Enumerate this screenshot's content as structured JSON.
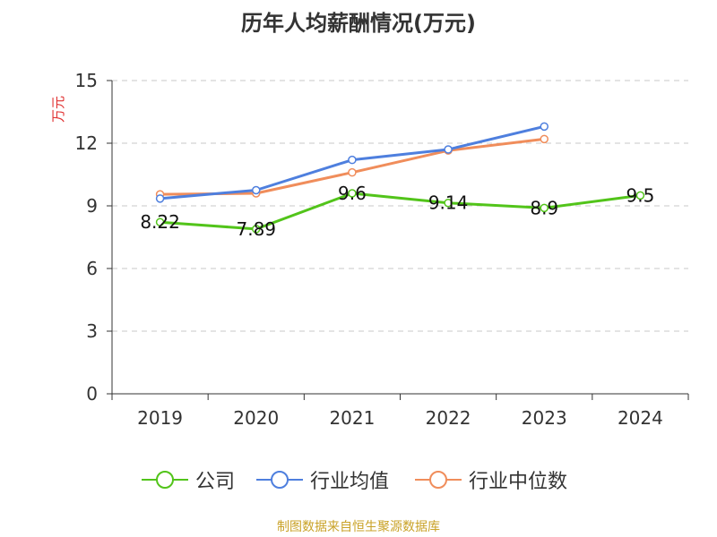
{
  "title": "历年人均薪酬情况(万元)",
  "source": "制图数据来自恒生聚源数据库",
  "chart_data": {
    "type": "line",
    "title": "历年人均薪酬情况(万元)",
    "xlabel": "",
    "ylabel": "万元",
    "ylim": [
      0,
      15
    ],
    "yticks": [
      0,
      3,
      6,
      9,
      12,
      15
    ],
    "grid": true,
    "legend_position": "bottom",
    "categories": [
      "2019",
      "2020",
      "2021",
      "2022",
      "2023",
      "2024"
    ],
    "series": [
      {
        "name": "公司",
        "color": "#52c41a",
        "values": [
          8.22,
          7.89,
          9.6,
          9.14,
          8.9,
          9.5
        ],
        "labels": [
          "8.22",
          "7.89",
          "9.6",
          "9.14",
          "8.9",
          "9.5"
        ]
      },
      {
        "name": "行业均值",
        "color": "#4e7fde",
        "values": [
          9.35,
          9.75,
          11.2,
          11.7,
          12.8,
          null
        ]
      },
      {
        "name": "行业中位数",
        "color": "#f08d5b",
        "values": [
          9.55,
          9.6,
          10.6,
          11.65,
          12.2,
          null
        ]
      }
    ]
  }
}
